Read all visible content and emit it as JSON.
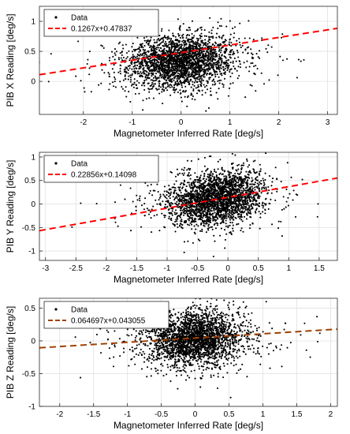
{
  "chart_data": [
    {
      "type": "scatter",
      "xlabel": "Magnetometer Inferred Rate [deg/s]",
      "ylabel": "PIB X Reading [deg/s]",
      "xlim": [
        -2.9,
        3.2
      ],
      "ylim": [
        -0.55,
        1.25
      ],
      "xticks": [
        -2,
        -1,
        0,
        1,
        2,
        3
      ],
      "xtick_labels": [
        "-2",
        "-1",
        "0",
        "1",
        "2",
        "3"
      ],
      "yticks": [
        0,
        0.5,
        1
      ],
      "ytick_labels": [
        "0",
        "0.5",
        "1"
      ],
      "grid": true,
      "legend_position": "top-left",
      "series": [
        {
          "name": "Data",
          "kind": "points",
          "color": "#000000",
          "cloud": {
            "x_center": 0.0,
            "x_spread": 0.55,
            "y_center": 0.33,
            "y_spread": 0.22,
            "corr": 0.15,
            "count": 2600
          }
        },
        {
          "name": "0.1267x+0.47837",
          "kind": "fit-line",
          "color": "#ff0000",
          "slope": 0.1267,
          "intercept": 0.47837
        }
      ]
    },
    {
      "type": "scatter",
      "xlabel": "Magnetometer Inferred Rate [deg/s]",
      "ylabel": "PIB Y Reading [deg/s]",
      "xlim": [
        -3.1,
        1.8
      ],
      "ylim": [
        -1.2,
        1.1
      ],
      "xticks": [
        -3,
        -2.5,
        -2,
        -1.5,
        -1,
        -0.5,
        0,
        0.5,
        1,
        1.5
      ],
      "xtick_labels": [
        "-3",
        "-2.5",
        "-2",
        "-1.5",
        "-1",
        "-0.5",
        "0",
        "0.5",
        "1",
        "1.5"
      ],
      "yticks": [
        -1,
        -0.5,
        0,
        0.5,
        1
      ],
      "ytick_labels": [
        "-1",
        "-0.5",
        "0",
        "0.5",
        "1"
      ],
      "grid": true,
      "legend_position": "top-left",
      "series": [
        {
          "name": "Data",
          "kind": "points",
          "color": "#000000",
          "cloud": {
            "x_center": -0.2,
            "x_spread": 0.38,
            "y_center": 0.12,
            "y_spread": 0.28,
            "corr": 0.2,
            "count": 2600
          }
        },
        {
          "name": "0.22856x+0.14098",
          "kind": "fit-line",
          "color": "#ff0000",
          "slope": 0.22856,
          "intercept": 0.14098
        }
      ]
    },
    {
      "type": "scatter",
      "xlabel": "Magnetometer Inferred Rate [deg/s]",
      "ylabel": "PIB Z Reading [deg/s]",
      "xlim": [
        -2.3,
        2.1
      ],
      "ylim": [
        -1.0,
        0.65
      ],
      "xticks": [
        -2,
        -1.5,
        -1,
        -0.5,
        0,
        0.5,
        1,
        1.5,
        2
      ],
      "xtick_labels": [
        "-2",
        "-1.5",
        "-1",
        "-0.5",
        "0",
        "0.5",
        "1",
        "1.5",
        "2"
      ],
      "yticks": [
        -1,
        -0.5,
        0,
        0.5
      ],
      "ytick_labels": [
        "-1",
        "-0.5",
        "0",
        "0.5"
      ],
      "grid": true,
      "legend_position": "top-left",
      "series": [
        {
          "name": "Data",
          "kind": "points",
          "color": "#000000",
          "cloud": {
            "x_center": 0.0,
            "x_spread": 0.35,
            "y_center": 0.04,
            "y_spread": 0.2,
            "corr": 0.1,
            "count": 2600
          }
        },
        {
          "name": "0.064697x+0.043055",
          "kind": "fit-line",
          "color": "#a04000",
          "slope": 0.064697,
          "intercept": 0.043055
        }
      ]
    }
  ]
}
